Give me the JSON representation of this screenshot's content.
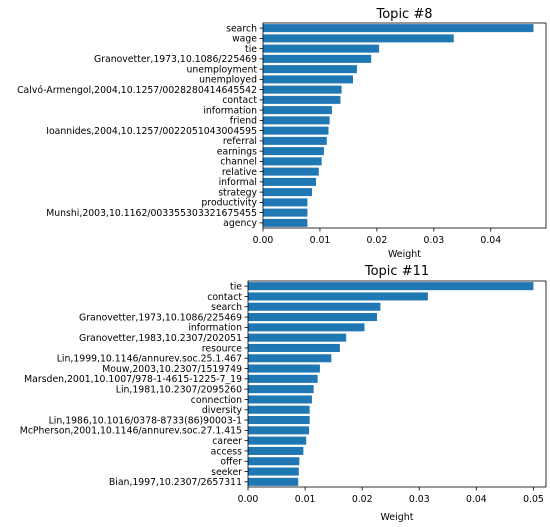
{
  "chart_data": [
    {
      "type": "bar",
      "orientation": "horizontal",
      "title": "Topic #8",
      "xlabel": "Weight",
      "ylabel": "",
      "xlim": [
        0,
        0.0497
      ],
      "xticks": [
        "0.00",
        "0.01",
        "0.02",
        "0.03",
        "0.04"
      ],
      "color": "#1f77b4",
      "grid": false,
      "categories": [
        "search",
        "wage",
        "tie",
        "Granovetter,1973,10.1086/225469",
        "unemployment",
        "unemployed",
        "Calvó-Armengol,2004,10.1257/0028280414645542",
        "contact",
        "information",
        "friend",
        "Ioannides,2004,10.1257/0022051043004595",
        "referral",
        "earnings",
        "channel",
        "relative",
        "informal",
        "strategy",
        "productivity",
        "Munshi,2003,10.1162/00335530332167545​5",
        "agency"
      ],
      "values": [
        0.0475,
        0.0335,
        0.0204,
        0.019,
        0.0165,
        0.0158,
        0.0138,
        0.0136,
        0.0121,
        0.0117,
        0.0115,
        0.0112,
        0.0107,
        0.0103,
        0.0098,
        0.0093,
        0.0086,
        0.0078,
        0.0078,
        0.0078
      ]
    },
    {
      "type": "bar",
      "orientation": "horizontal",
      "title": "Topic #11",
      "xlabel": "Weight",
      "ylabel": "",
      "xlim": [
        0,
        0.0522
      ],
      "xticks": [
        "0.00",
        "0.01",
        "0.02",
        "0.03",
        "0.04",
        "0.05"
      ],
      "color": "#1f77b4",
      "grid": false,
      "categories": [
        "tie",
        "contact",
        "search",
        "Granovetter,1973,10.1086/225469",
        "information",
        "Granovetter,1983,10.2307/202051",
        "resource",
        "Lin,1999,10.1146/annurev.soc.25.1.467",
        "Mouw,2003,10.2307/1519749",
        "Marsden,2001,10.1007/978-1-4615-1225-7_19",
        "Lin,1981,10.2307/2095260",
        "connection",
        "diversity",
        "Lin,1986,10.1016/0378-8733(86)90003-1",
        "McPherson,2001,10.1146/annurev.soc.27.1.415",
        "career",
        "access",
        "offer",
        "seeker",
        "Bian,1997,10.2307/2657311"
      ],
      "values": [
        0.05,
        0.0315,
        0.0232,
        0.0226,
        0.0204,
        0.0172,
        0.0161,
        0.0146,
        0.0126,
        0.0122,
        0.0115,
        0.0112,
        0.0108,
        0.0108,
        0.0107,
        0.0102,
        0.0097,
        0.009,
        0.0089,
        0.0088
      ]
    }
  ]
}
